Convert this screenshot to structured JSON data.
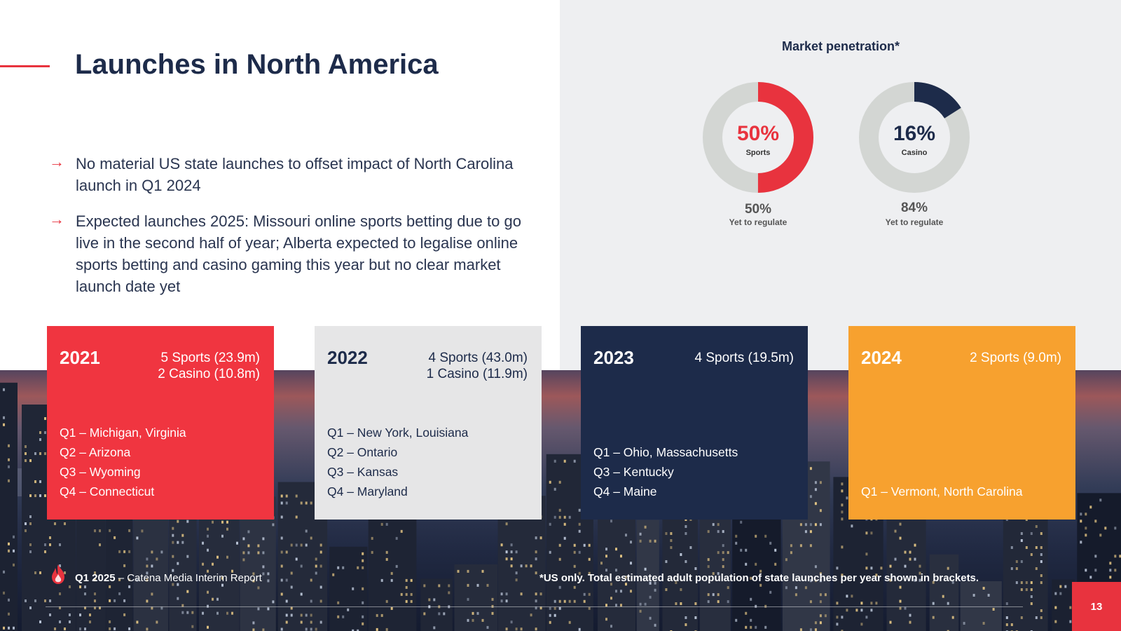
{
  "header": {
    "title": "Launches in North America"
  },
  "bullets": [
    "No material US state launches to offset impact of North Carolina launch in Q1 2024",
    "Expected launches 2025: Missouri online sports betting due to go live in the second half of year; Alberta expected to legalise online sports betting and casino gaming this year but no clear market launch date yet"
  ],
  "market": {
    "title": "Market penetration*",
    "sports": {
      "value": 50,
      "pct_label": "50%",
      "label": "Sports",
      "yet_pct": "50%",
      "yet_label": "Yet to regulate",
      "color": "#e8333e"
    },
    "casino": {
      "value": 16,
      "pct_label": "16%",
      "label": "Casino",
      "yet_pct": "84%",
      "yet_label": "Yet to regulate",
      "color": "#1d2b4a"
    },
    "track_color": "#d3d6d3"
  },
  "cards": [
    {
      "year": "2021",
      "summary": [
        "5 Sports (23.9m)",
        "2 Casino (10.8m)"
      ],
      "launches": [
        "Q1 – Michigan, Virginia",
        "Q2 – Arizona",
        "Q3 – Wyoming",
        "Q4 – Connecticut"
      ],
      "color": "#f03540"
    },
    {
      "year": "2022",
      "summary": [
        "4 Sports (43.0m)",
        "1 Casino (11.9m)"
      ],
      "launches": [
        "Q1 – New York, Louisiana",
        "Q2 – Ontario",
        "Q3 – Kansas",
        "Q4 – Maryland"
      ],
      "color": "#e6e6e7"
    },
    {
      "year": "2023",
      "summary": [
        "4 Sports (19.5m)"
      ],
      "launches": [
        "Q1 – Ohio, Massachusetts",
        "Q3 – Kentucky",
        "Q4 – Maine"
      ],
      "color": "#1d2b4a"
    },
    {
      "year": "2024",
      "summary": [
        "2 Sports (9.0m)"
      ],
      "launches": [
        "Q1 – Vermont, North Carolina"
      ],
      "color": "#f7a12f"
    }
  ],
  "footer": {
    "report_bold": "Q1 2025",
    "report_rest": " – Catena Media Interim Report",
    "footnote": "*US only. Total estimated adult population of state launches per year shown in brackets.",
    "page_number": "13",
    "logo_icon": "flame-logo-icon"
  }
}
